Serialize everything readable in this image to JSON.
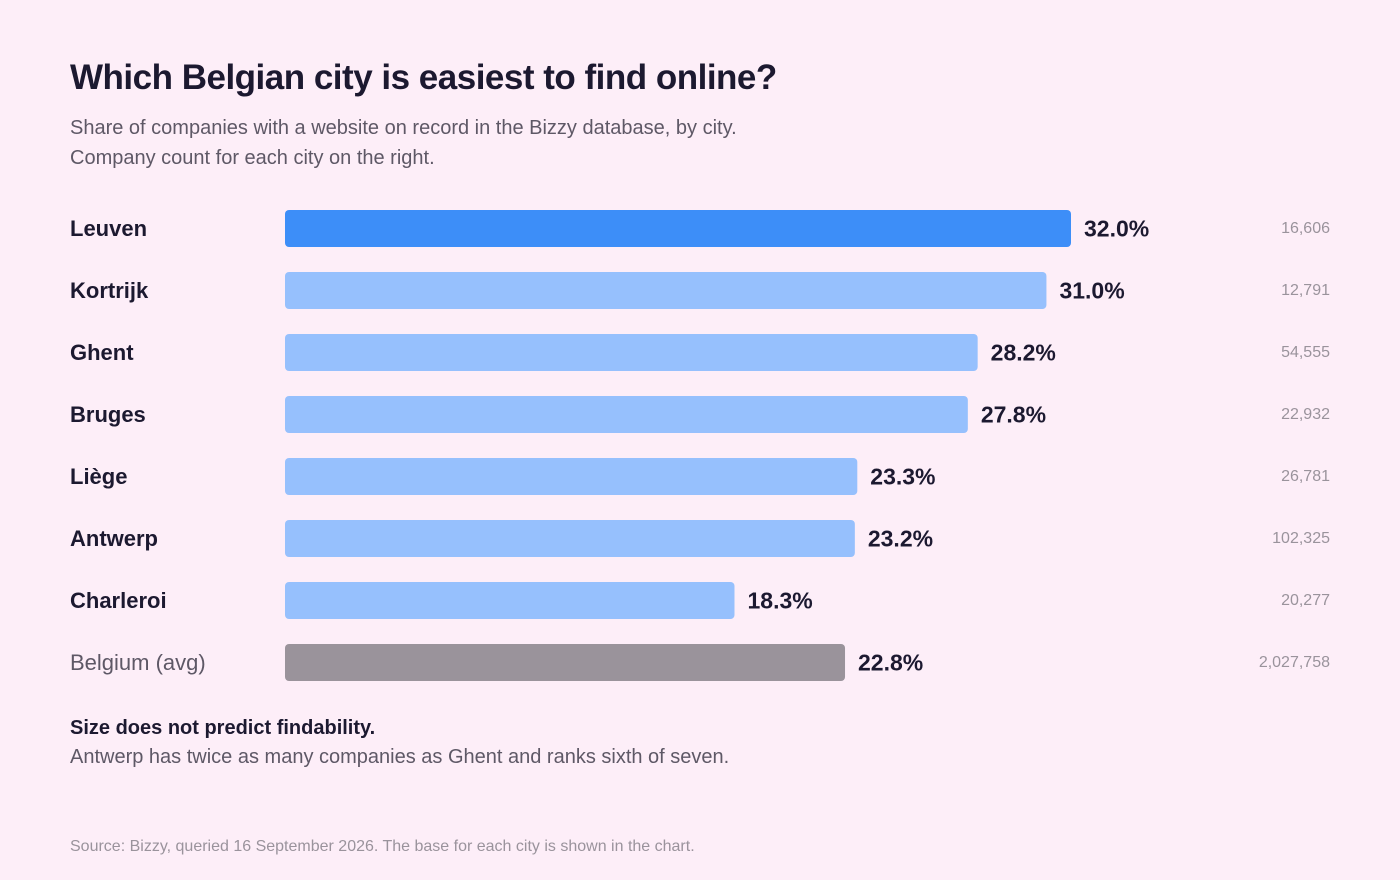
{
  "header": {
    "title": "Which Belgian city is easiest to find online?",
    "subtitle_line1": "Share of companies with a website on record in the Bizzy database, by city.",
    "subtitle_line2": "Company count for each city on the right."
  },
  "chart_data": {
    "type": "bar",
    "orientation": "horizontal",
    "title": "Which Belgian city is easiest to find online?",
    "categories": [
      "Leuven",
      "Kortrijk",
      "Ghent",
      "Bruges",
      "Liège",
      "Antwerp",
      "Charleroi",
      "Belgium (avg)"
    ],
    "values": [
      32.0,
      31.0,
      28.2,
      27.8,
      23.3,
      23.2,
      18.3,
      22.8
    ],
    "value_labels": [
      "32.0%",
      "31.0%",
      "28.2%",
      "27.8%",
      "23.3%",
      "23.2%",
      "18.3%",
      "22.8%"
    ],
    "company_counts": [
      "16,606",
      "12,791",
      "54,555",
      "22,932",
      "26,781",
      "102,325",
      "20,277",
      "2,027,758"
    ],
    "xlim": [
      0,
      100
    ],
    "grid": false,
    "legend": "none",
    "colors": {
      "highlight": "#3d8ef8",
      "default": "#96c0fd",
      "average": "#9a939b"
    },
    "bar_color_roles": [
      "highlight",
      "default",
      "default",
      "default",
      "default",
      "default",
      "default",
      "average"
    ]
  },
  "note": {
    "title": "Size does not predict findability.",
    "body": "Antwerp has twice as many companies as Ghent and ranks sixth of seven."
  },
  "source": "Source: Bizzy, queried 16 September 2026. The base for each city is shown in the chart."
}
